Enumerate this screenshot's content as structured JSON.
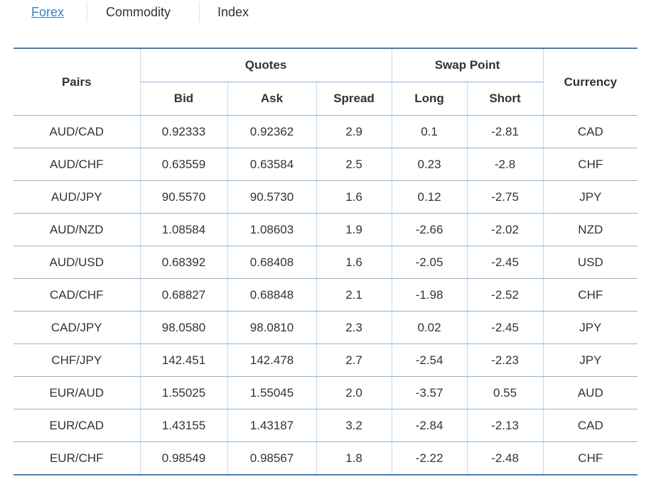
{
  "tabs": [
    "Forex",
    "Commodity",
    "Index"
  ],
  "table": {
    "headers": {
      "pairs": "Pairs",
      "quotes": "Quotes",
      "swap_point": "Swap Point",
      "currency": "Currency",
      "bid": "Bid",
      "ask": "Ask",
      "spread": "Spread",
      "long": "Long",
      "short": "Short"
    },
    "rows": [
      [
        "AUD/CAD",
        "0.92333",
        "0.92362",
        "2.9",
        "0.1",
        "-2.81",
        "CAD"
      ],
      [
        "AUD/CHF",
        "0.63559",
        "0.63584",
        "2.5",
        "0.23",
        "-2.8",
        "CHF"
      ],
      [
        "AUD/JPY",
        "90.5570",
        "90.5730",
        "1.6",
        "0.12",
        "-2.75",
        "JPY"
      ],
      [
        "AUD/NZD",
        "1.08584",
        "1.08603",
        "1.9",
        "-2.66",
        "-2.02",
        "NZD"
      ],
      [
        "AUD/USD",
        "0.68392",
        "0.68408",
        "1.6",
        "-2.05",
        "-2.45",
        "USD"
      ],
      [
        "CAD/CHF",
        "0.68827",
        "0.68848",
        "2.1",
        "-1.98",
        "-2.52",
        "CHF"
      ],
      [
        "CAD/JPY",
        "98.0580",
        "98.0810",
        "2.3",
        "0.02",
        "-2.45",
        "JPY"
      ],
      [
        "CHF/JPY",
        "142.451",
        "142.478",
        "2.7",
        "-2.54",
        "-2.23",
        "JPY"
      ],
      [
        "EUR/AUD",
        "1.55025",
        "1.55045",
        "2.0",
        "-3.57",
        "0.55",
        "AUD"
      ],
      [
        "EUR/CAD",
        "1.43155",
        "1.43187",
        "3.2",
        "-2.84",
        "-2.13",
        "CAD"
      ],
      [
        "EUR/CHF",
        "0.98549",
        "0.98567",
        "1.8",
        "-2.22",
        "-2.48",
        "CHF"
      ]
    ]
  }
}
